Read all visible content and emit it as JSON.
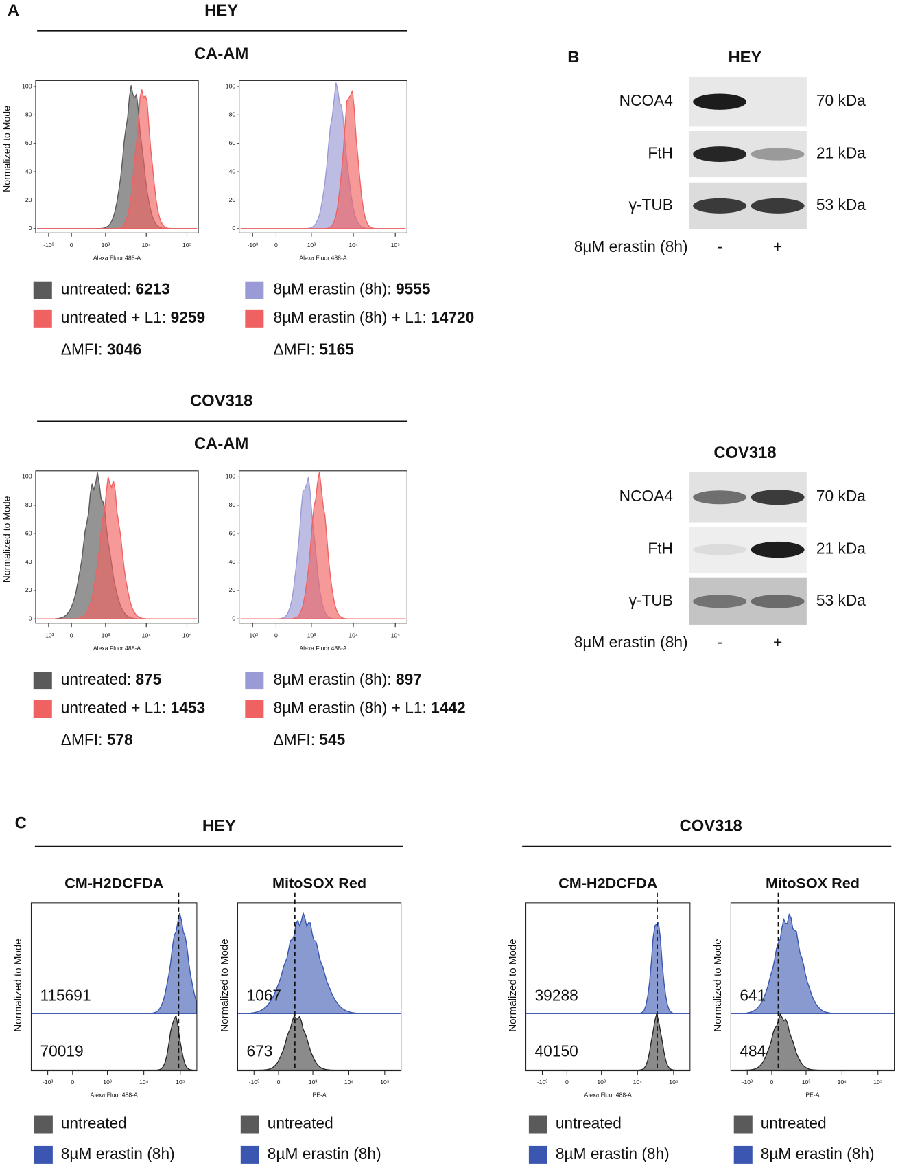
{
  "panel_a": {
    "label": "A",
    "y_axis_label": "Normalized to Mode",
    "x_axis_label": "Alexa Fluor 488-A",
    "yticks": [
      0,
      20,
      40,
      60,
      80,
      100
    ],
    "xticks": [
      "-10³",
      "0",
      "10³",
      "10⁴",
      "10⁵"
    ],
    "sections": [
      {
        "cell": "HEY",
        "stain": "CA-AM",
        "plots": [
          {
            "entries": [
              {
                "label": "untreated:",
                "value": 6213,
                "color": "#5a5a5a"
              },
              {
                "label": "untreated + L1:",
                "value": 9259,
                "color": "#f06262"
              }
            ],
            "delta_label": "ΔMFI:",
            "delta": 3046
          },
          {
            "entries": [
              {
                "label": "8µM erastin (8h):",
                "value": 9555,
                "color": "#9a9ad6"
              },
              {
                "label": "8µM erastin (8h) + L1:",
                "value": 14720,
                "color": "#f06262"
              }
            ],
            "delta_label": "ΔMFI:",
            "delta": 5165
          }
        ]
      },
      {
        "cell": "COV318",
        "stain": "CA-AM",
        "plots": [
          {
            "entries": [
              {
                "label": "untreated:",
                "value": 875,
                "color": "#5a5a5a"
              },
              {
                "label": "untreated + L1:",
                "value": 1453,
                "color": "#f06262"
              }
            ],
            "delta_label": "ΔMFI:",
            "delta": 578
          },
          {
            "entries": [
              {
                "label": "8µM erastin (8h):",
                "value": 897,
                "color": "#9a9ad6"
              },
              {
                "label": "8µM erastin (8h) + L1:",
                "value": 1442,
                "color": "#f06262"
              }
            ],
            "delta_label": "ΔMFI:",
            "delta": 545
          }
        ]
      }
    ]
  },
  "panel_b": {
    "label": "B",
    "blots": [
      {
        "cell": "HEY",
        "rows": [
          {
            "protein": "NCOA4",
            "size": "70 kDa"
          },
          {
            "protein": "FtH",
            "size": "21 kDa"
          },
          {
            "protein": "γ-TUB",
            "size": "53 kDa"
          }
        ],
        "treatment": "8µM erastin (8h)",
        "lanes": [
          "-",
          "+"
        ]
      },
      {
        "cell": "COV318",
        "rows": [
          {
            "protein": "NCOA4",
            "size": "70 kDa"
          },
          {
            "protein": "FtH",
            "size": "21 kDa"
          },
          {
            "protein": "γ-TUB",
            "size": "53 kDa"
          }
        ],
        "treatment": "8µM erastin (8h)",
        "lanes": [
          "-",
          "+"
        ]
      }
    ]
  },
  "panel_c": {
    "label": "C",
    "y_axis_label": "Normalized to Mode",
    "xticks": [
      "-10³",
      "0",
      "10³",
      "10⁴",
      "10⁵"
    ],
    "legend": [
      {
        "label": "untreated",
        "color": "#5a5a5a"
      },
      {
        "label": "8µM erastin (8h)",
        "color": "#3a56b0"
      }
    ],
    "groups": [
      {
        "cell": "HEY",
        "plots": [
          {
            "stain": "CM-H2DCFDA",
            "x_axis_label": "Alexa Fluor 488-A",
            "values": [
              115691,
              70019
            ]
          },
          {
            "stain": "MitoSOX Red",
            "x_axis_label": "PE-A",
            "values": [
              1067,
              673
            ]
          }
        ]
      },
      {
        "cell": "COV318",
        "plots": [
          {
            "stain": "CM-H2DCFDA",
            "x_axis_label": "Alexa Fluor 488-A",
            "values": [
              39288,
              40150
            ]
          },
          {
            "stain": "MitoSOX Red",
            "x_axis_label": "PE-A",
            "values": [
              641,
              484
            ]
          }
        ]
      }
    ]
  }
}
